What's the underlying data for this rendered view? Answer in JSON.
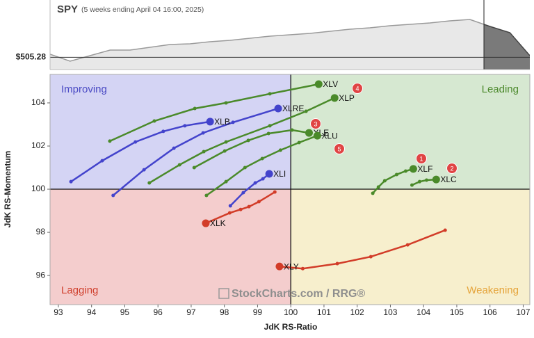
{
  "chart_data": {
    "type": "rrg",
    "price": {
      "title": "SPY",
      "subtitle": "(5 weeks ending April 04 16:00, 2025)",
      "values": [
        510.3,
        498.8,
        508,
        517.2,
        517.2,
        521.8,
        526.4,
        527.55,
        531,
        533.3,
        536.75,
        540.2,
        542.5,
        544.8,
        548.25,
        551.7,
        554,
        557.45,
        559.75,
        562.05,
        565.5,
        567.8,
        556.3,
        545.95,
        508
      ],
      "ylim": [
        485,
        600
      ],
      "last": {
        "value": 505.28,
        "label": "$505.28"
      },
      "color": "#9a9a9a",
      "recent_color": "#7a7a7a"
    },
    "xlabel": "JdK RS-Ratio",
    "ylabel": "JdK RS-Momentum",
    "xlim": [
      92.75,
      107.2
    ],
    "ylim": [
      94.65,
      105.32
    ],
    "xticks": [
      93,
      94,
      95,
      96,
      97,
      98,
      99,
      100,
      101,
      102,
      103,
      104,
      105,
      106,
      107
    ],
    "yticks": [
      96,
      98,
      100,
      102,
      104
    ],
    "center": [
      100,
      100
    ],
    "quadrants": [
      {
        "name": "Improving",
        "color": "#d4d4f4",
        "text_color": "#4a4ac4"
      },
      {
        "name": "Leading",
        "color": "#d6e8d1",
        "text_color": "#4d8a2e"
      },
      {
        "name": "Lagging",
        "color": "#f4cdcd",
        "text_color": "#d0402e"
      },
      {
        "name": "Weakening",
        "color": "#f7efcd",
        "text_color": "#e5a43a"
      }
    ],
    "series": [
      {
        "name": "XLV",
        "color": "#4a8a2a",
        "x": [
          94.55,
          95.89,
          97.11,
          98.05,
          99.37,
          100.84
        ],
        "values": [
          102.23,
          103.16,
          103.74,
          104.0,
          104.42,
          104.87
        ]
      },
      {
        "name": "XLP",
        "color": "#4a8a2a",
        "x": [
          95.74,
          96.65,
          97.38,
          98.05,
          99.37,
          100.46,
          101.32
        ],
        "values": [
          100.29,
          101.13,
          101.74,
          102.19,
          102.94,
          103.61,
          104.23
        ]
      },
      {
        "name": "XLE",
        "color": "#4a8a2a",
        "x": [
          97.09,
          98.01,
          98.72,
          99.33,
          100.04,
          100.55
        ],
        "values": [
          101.0,
          101.77,
          102.26,
          102.58,
          102.74,
          102.61
        ]
      },
      {
        "name": "XLU",
        "color": "#4a8a2a",
        "x": [
          97.46,
          98.05,
          98.62,
          99.14,
          99.69,
          100.25,
          100.8
        ],
        "values": [
          99.71,
          100.35,
          101.0,
          101.42,
          101.81,
          102.16,
          102.48
        ]
      },
      {
        "name": "XLRE",
        "color": "#4343cc",
        "x": [
          94.65,
          95.58,
          96.48,
          97.36,
          98.26,
          99.62
        ],
        "values": [
          99.71,
          100.9,
          101.9,
          102.61,
          103.1,
          103.74
        ]
      },
      {
        "name": "XLB",
        "color": "#4343cc",
        "x": [
          93.38,
          94.32,
          95.32,
          96.16,
          96.81,
          97.57
        ],
        "values": [
          100.35,
          101.32,
          102.19,
          102.68,
          102.94,
          103.13
        ]
      },
      {
        "name": "XLI",
        "color": "#4343cc",
        "x": [
          98.18,
          98.57,
          98.93,
          99.16,
          99.35
        ],
        "values": [
          99.23,
          99.84,
          100.29,
          100.48,
          100.71
        ]
      },
      {
        "name": "XLK",
        "color": "#d23c28",
        "x": [
          99.52,
          99.04,
          98.74,
          98.49,
          98.16,
          97.44
        ],
        "values": [
          99.87,
          99.42,
          99.19,
          99.06,
          98.9,
          98.42
        ]
      },
      {
        "name": "XLY",
        "color": "#d23c28",
        "x": [
          104.65,
          103.52,
          102.41,
          101.4,
          100.36,
          99.66
        ],
        "values": [
          98.1,
          97.42,
          96.87,
          96.55,
          96.32,
          96.42
        ]
      },
      {
        "name": "XLF",
        "color": "#4a8a2a",
        "x": [
          102.47,
          102.64,
          102.83,
          103.19,
          103.46,
          103.69
        ],
        "values": [
          99.81,
          100.1,
          100.39,
          100.68,
          100.84,
          100.94
        ]
      },
      {
        "name": "XLC",
        "color": "#4a8a2a",
        "x": [
          103.65,
          103.88,
          104.09,
          104.38
        ],
        "values": [
          100.19,
          100.35,
          100.42,
          100.45
        ]
      }
    ],
    "annotations": [
      "1",
      "2",
      "3",
      "4",
      "5"
    ],
    "watermark": "StockCharts.com / RRG®"
  }
}
